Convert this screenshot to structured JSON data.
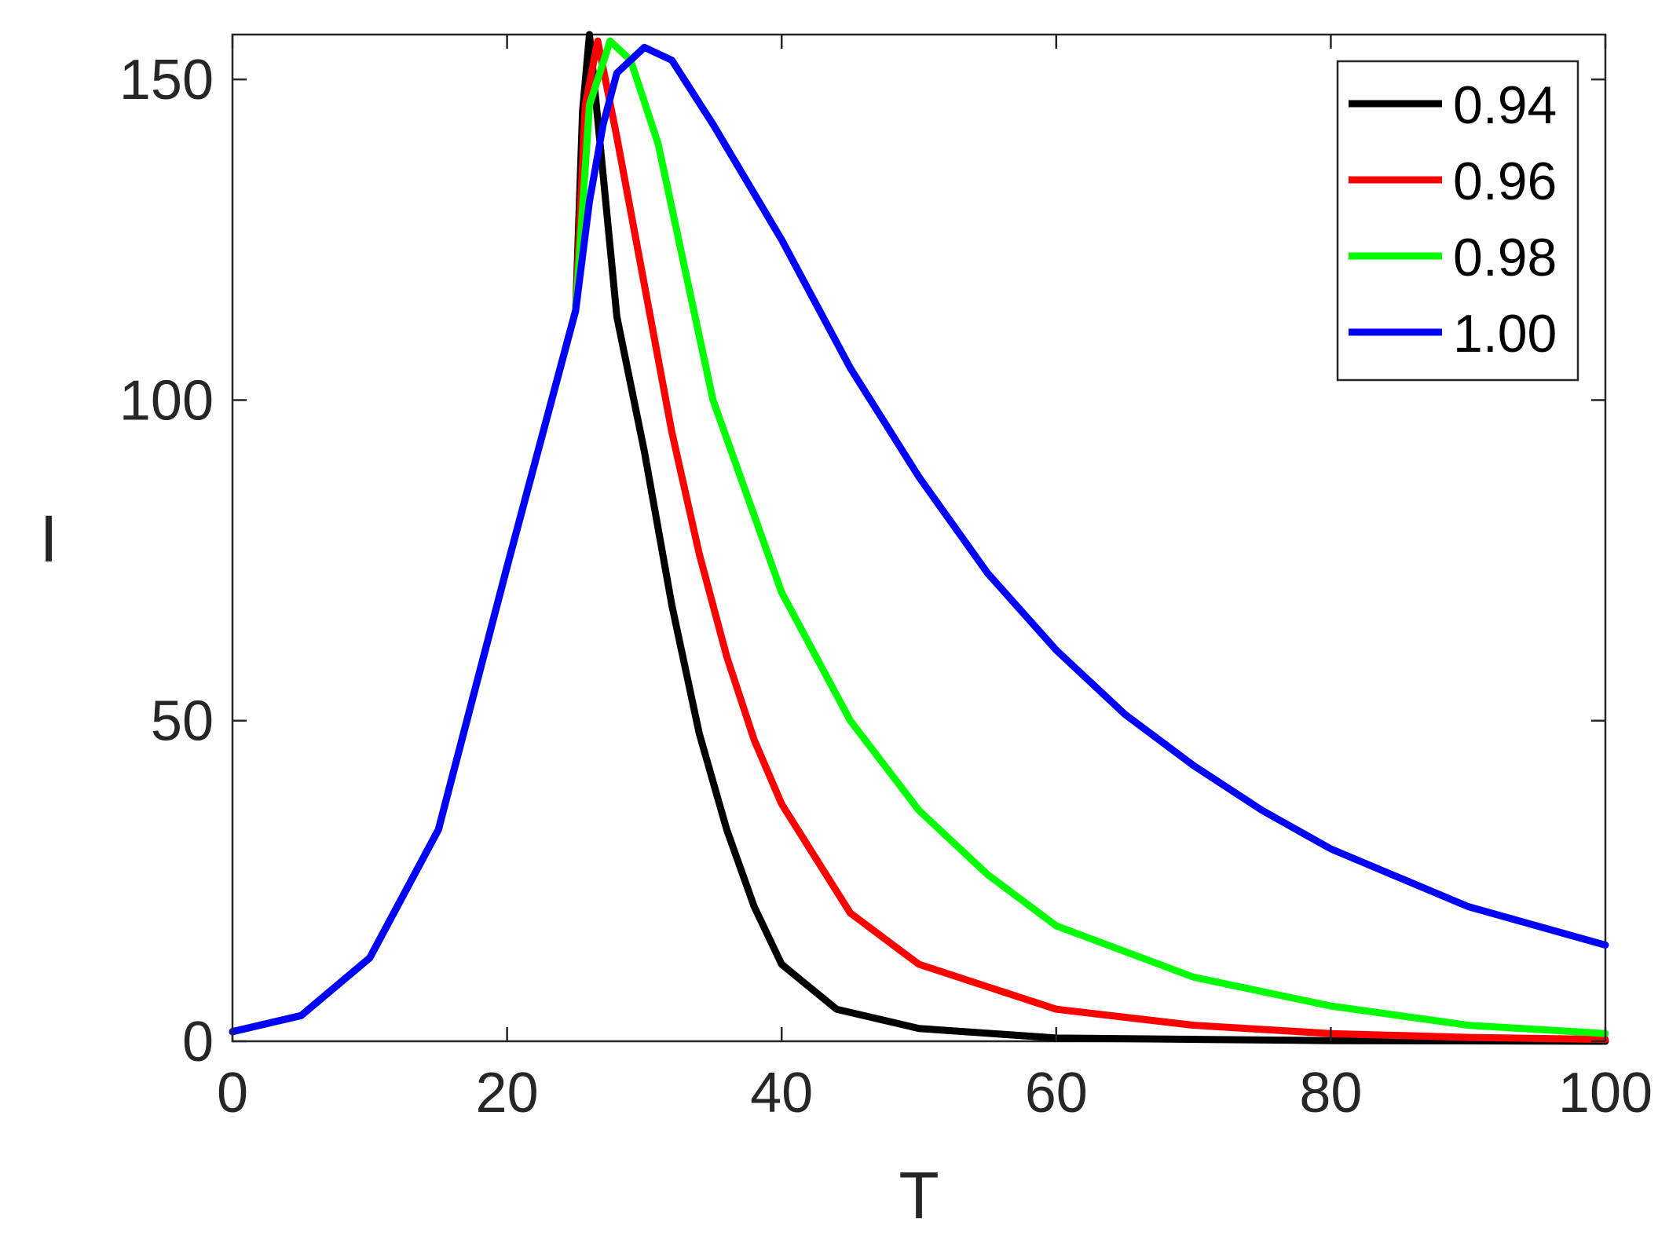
{
  "chart_data": {
    "type": "line",
    "title": "",
    "xlabel": "T",
    "ylabel": "I",
    "xlim": [
      0,
      100
    ],
    "ylim": [
      0,
      157
    ],
    "xticks": [
      0,
      20,
      40,
      60,
      80,
      100
    ],
    "yticks": [
      0,
      50,
      100,
      150
    ],
    "xtick_labels": [
      "0",
      "20",
      "40",
      "60",
      "80",
      "100"
    ],
    "ytick_labels": [
      "0",
      "50",
      "100",
      "150"
    ],
    "grid": false,
    "box": true,
    "legend_position": "top-right",
    "series": [
      {
        "name": "0.94",
        "color": "#000000",
        "points": [
          [
            0,
            1.5
          ],
          [
            5,
            4
          ],
          [
            10,
            13
          ],
          [
            15,
            33
          ],
          [
            20,
            74
          ],
          [
            25,
            114
          ],
          [
            25.5,
            145
          ],
          [
            26,
            157
          ],
          [
            27,
            135
          ],
          [
            28,
            113
          ],
          [
            30,
            92
          ],
          [
            32,
            68
          ],
          [
            34,
            48
          ],
          [
            36,
            33
          ],
          [
            38,
            21
          ],
          [
            40,
            12
          ],
          [
            44,
            5
          ],
          [
            50,
            2
          ],
          [
            60,
            0.5
          ],
          [
            80,
            0.1
          ],
          [
            100,
            0
          ]
        ]
      },
      {
        "name": "0.96",
        "color": "#ff0000",
        "points": [
          [
            0,
            1.5
          ],
          [
            5,
            4
          ],
          [
            10,
            13
          ],
          [
            15,
            33
          ],
          [
            20,
            74
          ],
          [
            25,
            114
          ],
          [
            25.7,
            146
          ],
          [
            26.6,
            156
          ],
          [
            28,
            141
          ],
          [
            30,
            118
          ],
          [
            32,
            95
          ],
          [
            34,
            76
          ],
          [
            36,
            60
          ],
          [
            38,
            47
          ],
          [
            40,
            37
          ],
          [
            45,
            20
          ],
          [
            50,
            12
          ],
          [
            60,
            5
          ],
          [
            70,
            2.5
          ],
          [
            80,
            1.2
          ],
          [
            90,
            0.6
          ],
          [
            100,
            0.3
          ]
        ]
      },
      {
        "name": "0.98",
        "color": "#00ff00",
        "points": [
          [
            0,
            1.5
          ],
          [
            5,
            4
          ],
          [
            10,
            13
          ],
          [
            15,
            33
          ],
          [
            20,
            74
          ],
          [
            25,
            114
          ],
          [
            26,
            146
          ],
          [
            27.5,
            156
          ],
          [
            29,
            153
          ],
          [
            31,
            140
          ],
          [
            33,
            120
          ],
          [
            35,
            100
          ],
          [
            40,
            70
          ],
          [
            45,
            50
          ],
          [
            50,
            36
          ],
          [
            55,
            26
          ],
          [
            60,
            18
          ],
          [
            70,
            10
          ],
          [
            80,
            5.5
          ],
          [
            90,
            2.5
          ],
          [
            100,
            1.2
          ]
        ]
      },
      {
        "name": "1.00",
        "color": "#0000ff",
        "points": [
          [
            0,
            1.5
          ],
          [
            5,
            4
          ],
          [
            10,
            13
          ],
          [
            15,
            33
          ],
          [
            20,
            74
          ],
          [
            25,
            114
          ],
          [
            26,
            131
          ],
          [
            27,
            143
          ],
          [
            28,
            151
          ],
          [
            30,
            155
          ],
          [
            32,
            153
          ],
          [
            35,
            143
          ],
          [
            40,
            125
          ],
          [
            45,
            105
          ],
          [
            50,
            88
          ],
          [
            55,
            73
          ],
          [
            60,
            61
          ],
          [
            65,
            51
          ],
          [
            70,
            43
          ],
          [
            75,
            36
          ],
          [
            80,
            30
          ],
          [
            90,
            21
          ],
          [
            100,
            15
          ]
        ]
      }
    ]
  }
}
